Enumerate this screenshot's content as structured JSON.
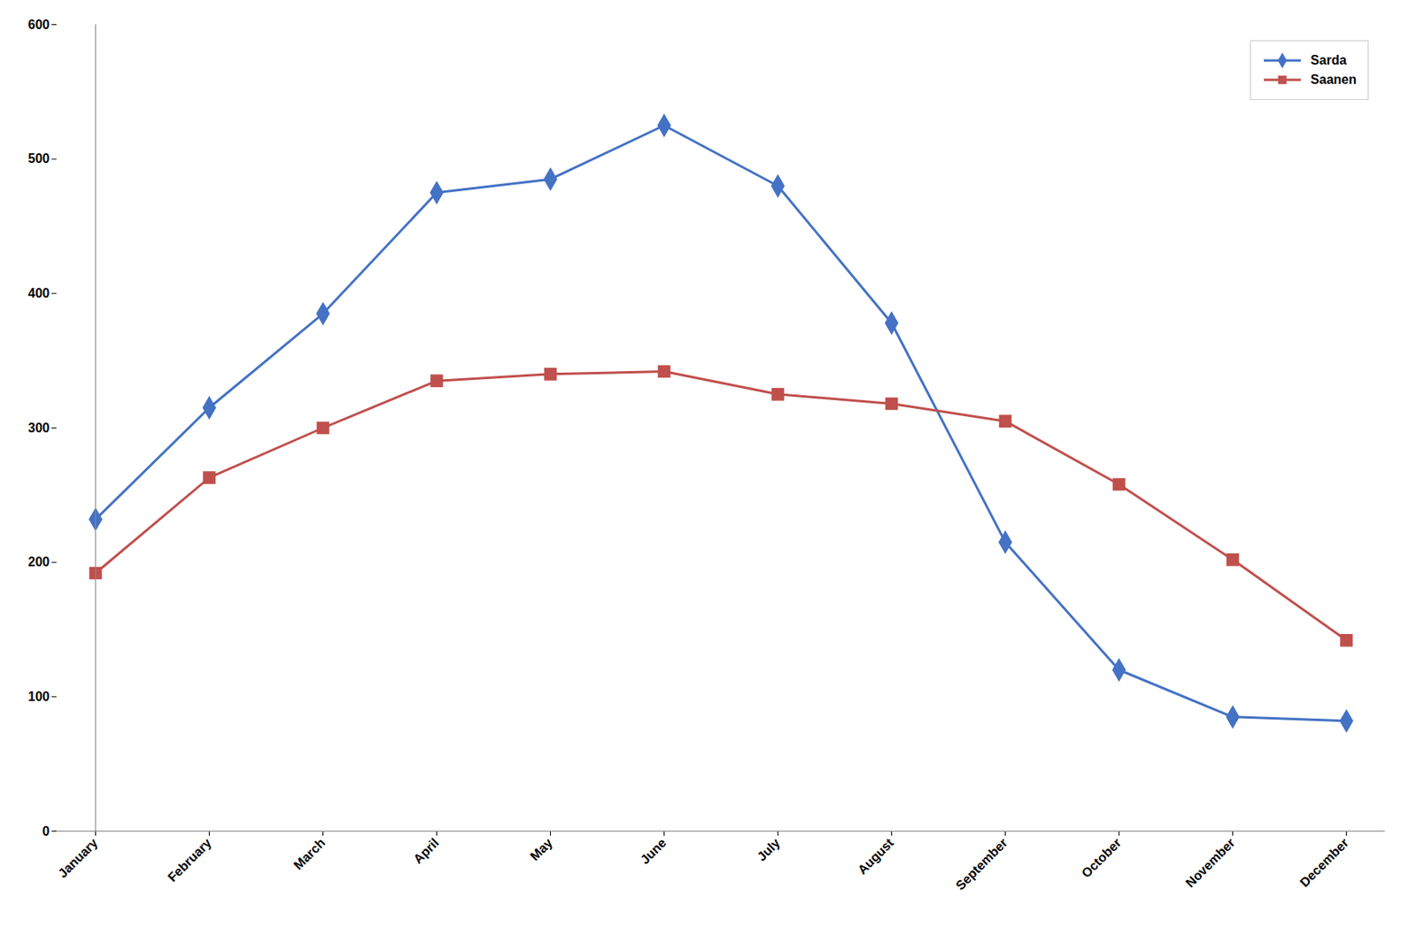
{
  "chart_data": {
    "type": "line",
    "categories": [
      "January",
      "February",
      "March",
      "April",
      "May",
      "June",
      "July",
      "August",
      "September",
      "October",
      "November",
      "December"
    ],
    "series": [
      {
        "name": "Sarda",
        "color": "#4472C4",
        "marker": "diamond",
        "values": [
          232,
          315,
          385,
          475,
          485,
          525,
          480,
          378,
          215,
          120,
          85,
          82
        ]
      },
      {
        "name": "Saanen",
        "color": "#C0504D",
        "marker": "square",
        "values": [
          192,
          263,
          300,
          335,
          340,
          342,
          325,
          318,
          305,
          258,
          202,
          142
        ]
      }
    ],
    "ylim": [
      0,
      600
    ],
    "yticks": [
      0,
      100,
      200,
      300,
      400,
      500,
      600
    ],
    "grid": false,
    "legend": "upper right"
  }
}
